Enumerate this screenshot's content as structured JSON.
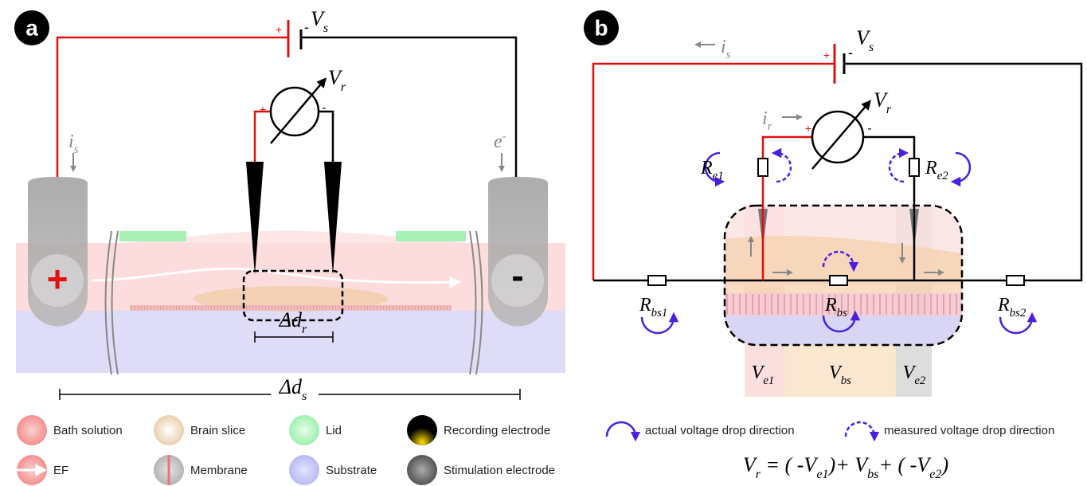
{
  "panel_a": {
    "label": "a",
    "source_voltage": {
      "main": "V",
      "sub": "s"
    },
    "source_plus": "+",
    "source_minus": "-",
    "recorded_voltage": {
      "main": "V",
      "sub": "r"
    },
    "meter_plus": "+",
    "meter_minus": "-",
    "stim_current": {
      "main": "i",
      "sub": "s"
    },
    "electron": {
      "main": "e",
      "sup": "-"
    },
    "anode_sign": "+",
    "cathode_sign": "-",
    "recording_distance": {
      "main": "Δd",
      "sub": "r"
    },
    "stimulation_distance": {
      "main": "Δd",
      "sub": "s"
    },
    "legend": [
      "Bath solution",
      "Brain slice",
      "Lid",
      "Recording electrode",
      "EF",
      "Membrane",
      "Substrate",
      "Stimulation electrode"
    ]
  },
  "panel_b": {
    "label": "b",
    "source_current": {
      "main": "i",
      "sub": "s"
    },
    "source_voltage": {
      "main": "V",
      "sub": "s"
    },
    "source_plus": "+",
    "source_minus": "-",
    "recorded_voltage": {
      "main": "V",
      "sub": "r"
    },
    "recording_current": {
      "main": "i",
      "sub": "r"
    },
    "meter_plus": "+",
    "meter_minus": "-",
    "resistors": [
      {
        "main": "R",
        "sub": "e1"
      },
      {
        "main": "R",
        "sub": "e2"
      },
      {
        "main": "R",
        "sub": "bs1"
      },
      {
        "main": "R",
        "sub": "bs"
      },
      {
        "main": "R",
        "sub": "bs2"
      }
    ],
    "voltages": [
      {
        "main": "V",
        "sub": "e1"
      },
      {
        "main": "V",
        "sub": "bs"
      },
      {
        "main": "V",
        "sub": "e2"
      }
    ],
    "legend": [
      "actual voltage drop direction",
      "measured voltage drop direction"
    ],
    "equation": [
      {
        "main": "V",
        "sub": "r"
      },
      {
        "main": " = ( -"
      },
      {
        "main": "V",
        "sub": "e1"
      },
      {
        "main": ")+ "
      },
      {
        "main": "V",
        "sub": "bs"
      },
      {
        "main": "+ ( -"
      },
      {
        "main": "V",
        "sub": "e2"
      },
      {
        "main": ")"
      }
    ]
  }
}
